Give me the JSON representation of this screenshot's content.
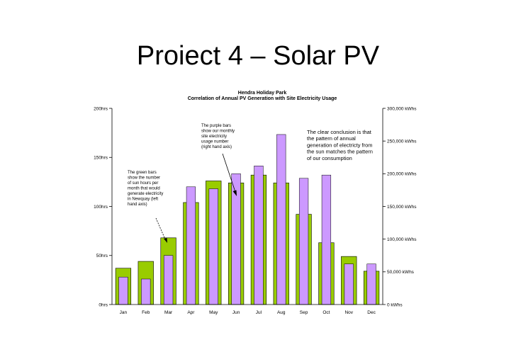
{
  "slide": {
    "title": "Proiect 4 – Solar PV"
  },
  "chart_data": {
    "type": "bar",
    "title": "Hendra Holiday Park",
    "subtitle": "Correlation of Annual PV Generation with Site Electricity Usage",
    "categories": [
      "Jan",
      "Feb",
      "Mar",
      "Apr",
      "May",
      "Jun",
      "Jul",
      "Aug",
      "Sep",
      "Oct",
      "Nov",
      "Dec"
    ],
    "series": [
      {
        "axis": "left",
        "color": "#99cc00",
        "values": [
          37,
          44,
          68,
          104,
          126,
          124,
          132,
          124,
          92,
          63,
          49,
          34
        ]
      },
      {
        "axis": "right",
        "color": "#cc99ff",
        "values": [
          42000,
          39000,
          75000,
          180000,
          177000,
          200000,
          212000,
          260000,
          193000,
          198000,
          62000,
          62000
        ]
      }
    ],
    "left_axis": {
      "range": [
        0,
        200
      ],
      "ticks": [
        0,
        50,
        100,
        150,
        200
      ],
      "tick_labels": [
        "0hrs",
        "50hrs",
        "100hrs",
        "150hrs",
        "200hrs"
      ]
    },
    "right_axis": {
      "range": [
        0,
        300000
      ],
      "ticks": [
        0,
        50000,
        100000,
        150000,
        200000,
        250000,
        300000
      ],
      "tick_labels": [
        "0 kWhs",
        "50,000 kWhs",
        "100,000 kWhs",
        "150,000 kWhs",
        "200,000 kWhs",
        "250,000 kWhs",
        "300,000 kWhs"
      ]
    },
    "grid": false,
    "annotations": [
      {
        "id": "green",
        "lines": [
          "The green bars",
          "show the number",
          "of sun hours per",
          "month that would",
          "generate electricity",
          "in Newquay (left",
          "hand axis)"
        ]
      },
      {
        "id": "purple",
        "lines": [
          "The purple bars",
          "show our monthly",
          "site electricity",
          "usage number",
          "(right hand axis)"
        ]
      },
      {
        "id": "conclusion",
        "lines": [
          "The clear conclusion is that",
          "the pattern of annual",
          "generation of electricty from",
          "the sun matches the pattern",
          "of our consumption"
        ]
      }
    ]
  }
}
